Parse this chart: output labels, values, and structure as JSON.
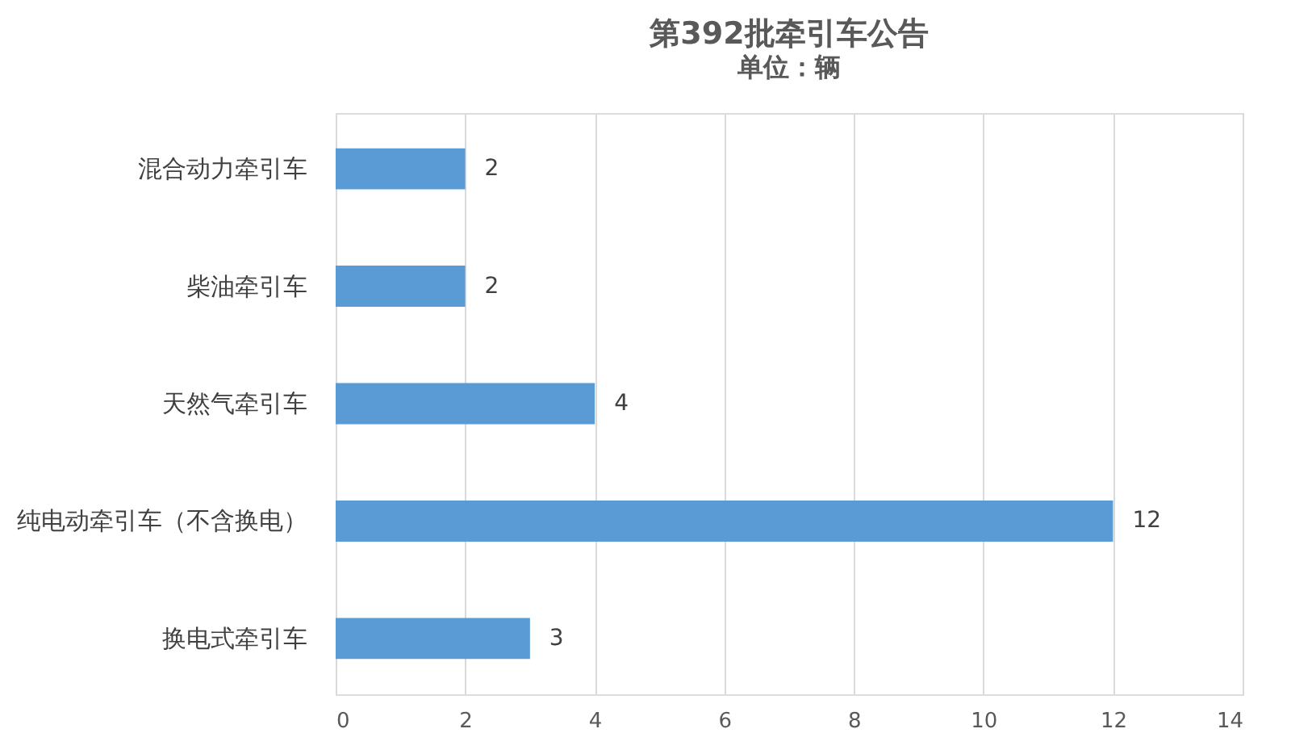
{
  "chart_data": {
    "type": "bar",
    "orientation": "horizontal",
    "title": "第392批牵引车公告",
    "subtitle": "单位：辆",
    "categories": [
      "混合动力牵引车",
      "柴油牵引车",
      "天然气牵引车",
      "纯电动牵引车（不含换电）",
      "换电式牵引车"
    ],
    "values": [
      2,
      2,
      4,
      12,
      3
    ],
    "color": "#5b9bd5",
    "xlim": [
      0,
      14
    ],
    "xticks": [
      0,
      2,
      4,
      6,
      8,
      10,
      12,
      14
    ],
    "grid": "x",
    "data_labels": true
  }
}
